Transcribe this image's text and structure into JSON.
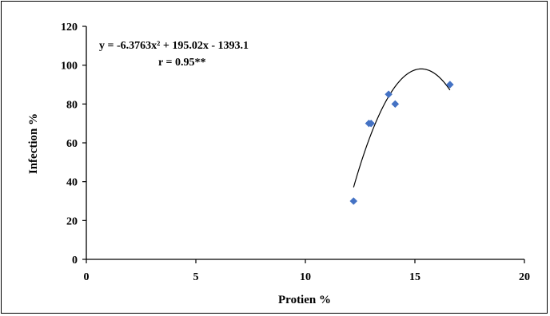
{
  "chart_data": {
    "type": "scatter",
    "xlabel": "Protien %",
    "ylabel": "Infection %",
    "xlim": [
      0,
      20
    ],
    "ylim": [
      0,
      120
    ],
    "x_ticks": [
      0,
      5,
      10,
      15,
      20
    ],
    "y_ticks": [
      0,
      20,
      40,
      60,
      80,
      100,
      120
    ],
    "grid": false,
    "legend": "none",
    "series": [
      {
        "marker": "diamond",
        "color": "#4472c4",
        "points": [
          {
            "x": 12.2,
            "y": 30
          },
          {
            "x": 12.9,
            "y": 70
          },
          {
            "x": 13.0,
            "y": 70
          },
          {
            "x": 13.8,
            "y": 85
          },
          {
            "x": 14.1,
            "y": 80
          },
          {
            "x": 16.6,
            "y": 90
          }
        ]
      }
    ],
    "trendline": {
      "kind": "polynomial",
      "coefficients": {
        "a": -6.3763,
        "b": 195.02,
        "c": -1393.1
      },
      "x_range": [
        12.2,
        16.6
      ],
      "color": "#000000"
    },
    "annotations": {
      "equation": "y = -6.3763x² + 195.02x - 1393.1",
      "r_value": "r = 0.95**"
    }
  }
}
